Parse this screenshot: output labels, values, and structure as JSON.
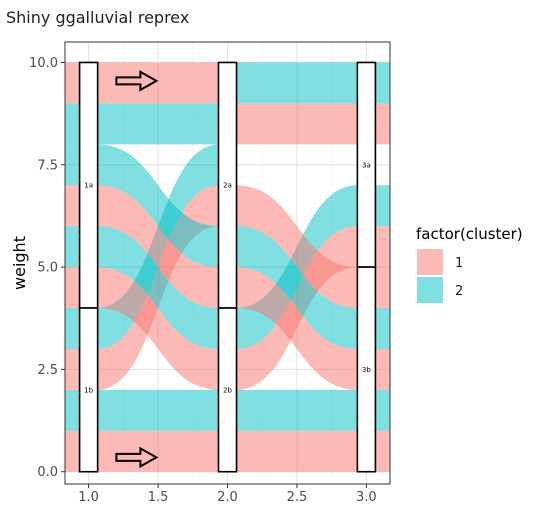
{
  "chart_data": {
    "type": "alluvial",
    "title": "Shiny ggalluvial reprex",
    "xlabel": "",
    "ylabel": "weight",
    "xlim": [
      0.83,
      3.17
    ],
    "ylim": [
      -0.3,
      10.5
    ],
    "x_ticks": [
      "1.0",
      "1.5",
      "2.0",
      "2.5",
      "3.0"
    ],
    "x_tick_values": [
      1.0,
      1.5,
      2.0,
      2.5,
      3.0
    ],
    "y_ticks": [
      "0.0",
      "2.5",
      "5.0",
      "7.5",
      "10.0"
    ],
    "y_tick_values": [
      0,
      2.5,
      5,
      7.5,
      10
    ],
    "grid": true,
    "legend": {
      "title": "factor(cluster)",
      "placement": "right",
      "items": [
        {
          "label": "1",
          "color": "#F8766D"
        },
        {
          "label": "2",
          "color": "#00BFC4"
        }
      ]
    },
    "axes": [
      1,
      2,
      3
    ],
    "strata": [
      {
        "x": 1,
        "label": "1a",
        "ymin": 4,
        "ymax": 10
      },
      {
        "x": 1,
        "label": "1b",
        "ymin": 0,
        "ymax": 4
      },
      {
        "x": 2,
        "label": "2a",
        "ymin": 4,
        "ymax": 10
      },
      {
        "x": 2,
        "label": "2b",
        "ymin": 0,
        "ymax": 4
      },
      {
        "x": 3,
        "label": "3a",
        "ymin": 5,
        "ymax": 10
      },
      {
        "x": 3,
        "label": "3b",
        "ymin": 0,
        "ymax": 5
      }
    ],
    "flows": [
      {
        "from": 1,
        "to": 2,
        "ys": [
          0,
          0
        ],
        "cluster": "1"
      },
      {
        "from": 1,
        "to": 2,
        "ys": [
          1,
          1
        ],
        "cluster": "2"
      },
      {
        "from": 1,
        "to": 2,
        "ys": [
          2,
          6
        ],
        "cluster": "1"
      },
      {
        "from": 1,
        "to": 2,
        "ys": [
          3,
          7
        ],
        "cluster": "2"
      },
      {
        "from": 1,
        "to": 2,
        "ys": [
          4,
          2
        ],
        "cluster": "1"
      },
      {
        "from": 1,
        "to": 2,
        "ys": [
          5,
          3
        ],
        "cluster": "2"
      },
      {
        "from": 1,
        "to": 2,
        "ys": [
          6,
          4
        ],
        "cluster": "1"
      },
      {
        "from": 1,
        "to": 2,
        "ys": [
          7,
          5
        ],
        "cluster": "2"
      },
      {
        "from": 1,
        "to": 2,
        "ys": [
          8,
          8
        ],
        "cluster": "2"
      },
      {
        "from": 1,
        "to": 2,
        "ys": [
          9,
          9
        ],
        "cluster": "1"
      },
      {
        "from": 2,
        "to": 3,
        "ys": [
          0,
          0
        ],
        "cluster": "1"
      },
      {
        "from": 2,
        "to": 3,
        "ys": [
          1,
          1
        ],
        "cluster": "2"
      },
      {
        "from": 2,
        "to": 3,
        "ys": [
          2,
          5
        ],
        "cluster": "1"
      },
      {
        "from": 2,
        "to": 3,
        "ys": [
          3,
          6
        ],
        "cluster": "2"
      },
      {
        "from": 2,
        "to": 3,
        "ys": [
          4,
          2
        ],
        "cluster": "1"
      },
      {
        "from": 2,
        "to": 3,
        "ys": [
          5,
          3
        ],
        "cluster": "2"
      },
      {
        "from": 2,
        "to": 3,
        "ys": [
          6,
          4
        ],
        "cluster": "1"
      },
      {
        "from": 2,
        "to": 3,
        "ys": [
          8,
          8
        ],
        "cluster": "1"
      },
      {
        "from": 2,
        "to": 3,
        "ys": [
          9,
          9
        ],
        "cluster": "2"
      }
    ],
    "flow_width": 1,
    "annotations": [
      {
        "type": "arrow",
        "x": 1.2,
        "y": 9.55
      },
      {
        "type": "arrow",
        "x": 1.2,
        "y": 0.35
      }
    ]
  }
}
